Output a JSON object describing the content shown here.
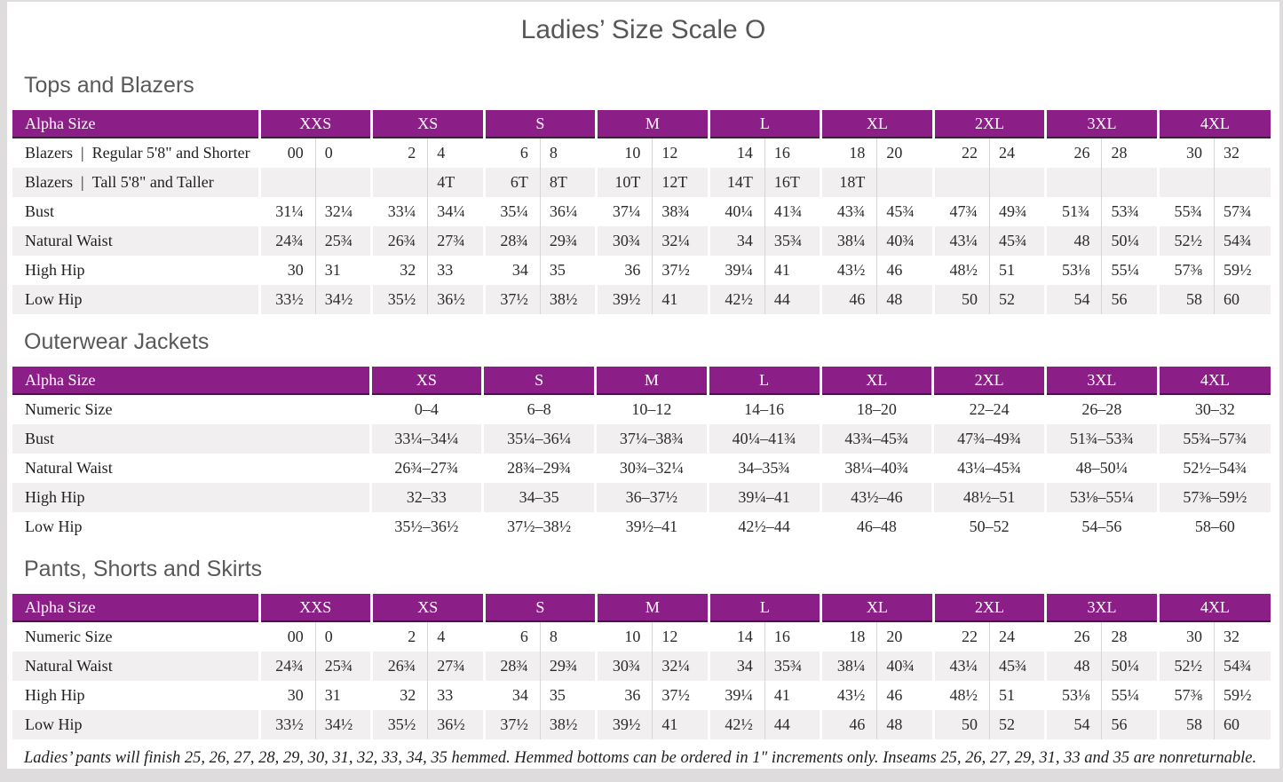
{
  "page_title": "Ladies’ Size Scale O",
  "colors": {
    "accent_purple": "#8b1e87",
    "header_underline": "#401b40",
    "alt_row": "#f1efef",
    "heading_gray": "#595959",
    "surround_gray": "#dedcdc"
  },
  "footnote": "Ladies’ pants will finish 25, 26, 27, 28, 29, 30, 31, 32, 33, 34, 35 hemmed. Hemmed bottoms can be ordered in 1\" increments only. Inseams 25, 26, 27, 29, 31, 33 and 35 are nonreturnable.",
  "sections": [
    {
      "id": "tops-and-blazers",
      "heading": "Tops and Blazers",
      "header_label": "Alpha Size",
      "label_col_width": 278,
      "split": true,
      "sizes": [
        "XXS",
        "XS",
        "S",
        "M",
        "L",
        "XL",
        "2XL",
        "3XL",
        "4XL"
      ],
      "rows": [
        {
          "label": "Blazers | Regular 5'8\" and Shorter",
          "values": [
            [
              "00",
              "0"
            ],
            [
              "2",
              "4"
            ],
            [
              "6",
              "8"
            ],
            [
              "10",
              "12"
            ],
            [
              "14",
              "16"
            ],
            [
              "18",
              "20"
            ],
            [
              "22",
              "24"
            ],
            [
              "26",
              "28"
            ],
            [
              "30",
              "32"
            ]
          ]
        },
        {
          "label": "Blazers | Tall 5'8\" and Taller",
          "values": [
            [
              "",
              ""
            ],
            [
              "",
              "4T"
            ],
            [
              "6T",
              "8T"
            ],
            [
              "10T",
              "12T"
            ],
            [
              "14T",
              "16T"
            ],
            [
              "18T",
              ""
            ],
            [
              "",
              ""
            ],
            [
              "",
              ""
            ],
            [
              "",
              ""
            ]
          ]
        },
        {
          "label": "Bust",
          "values": [
            [
              "31¼",
              "32¼"
            ],
            [
              "33¼",
              "34¼"
            ],
            [
              "35¼",
              "36¼"
            ],
            [
              "37¼",
              "38¾"
            ],
            [
              "40¼",
              "41¾"
            ],
            [
              "43¾",
              "45¾"
            ],
            [
              "47¾",
              "49¾"
            ],
            [
              "51¾",
              "53¾"
            ],
            [
              "55¾",
              "57¾"
            ]
          ]
        },
        {
          "label": "Natural Waist",
          "values": [
            [
              "24¾",
              "25¾"
            ],
            [
              "26¾",
              "27¾"
            ],
            [
              "28¾",
              "29¾"
            ],
            [
              "30¾",
              "32¼"
            ],
            [
              "34",
              "35¾"
            ],
            [
              "38¼",
              "40¾"
            ],
            [
              "43¼",
              "45¾"
            ],
            [
              "48",
              "50¼"
            ],
            [
              "52½",
              "54¾"
            ]
          ]
        },
        {
          "label": "High Hip",
          "values": [
            [
              "30",
              "31"
            ],
            [
              "32",
              "33"
            ],
            [
              "34",
              "35"
            ],
            [
              "36",
              "37½"
            ],
            [
              "39¼",
              "41"
            ],
            [
              "43½",
              "46"
            ],
            [
              "48½",
              "51"
            ],
            [
              "53⅛",
              "55¼"
            ],
            [
              "57⅜",
              "59½"
            ]
          ]
        },
        {
          "label": "Low Hip",
          "values": [
            [
              "33½",
              "34½"
            ],
            [
              "35½",
              "36½"
            ],
            [
              "37½",
              "38½"
            ],
            [
              "39½",
              "41"
            ],
            [
              "42½",
              "44"
            ],
            [
              "46",
              "48"
            ],
            [
              "50",
              "52"
            ],
            [
              "54",
              "56"
            ],
            [
              "58",
              "60"
            ]
          ]
        }
      ]
    },
    {
      "id": "outerwear-jackets",
      "heading": "Outerwear Jackets",
      "header_label": "Alpha Size",
      "label_col_width": 403,
      "split": false,
      "sizes": [
        "XS",
        "S",
        "M",
        "L",
        "XL",
        "2XL",
        "3XL",
        "4XL"
      ],
      "rows": [
        {
          "label": "Numeric Size",
          "values": [
            "0–4",
            "6–8",
            "10–12",
            "14–16",
            "18–20",
            "22–24",
            "26–28",
            "30–32"
          ]
        },
        {
          "label": "Bust",
          "values": [
            "33¼–34¼",
            "35¼–36¼",
            "37¼–38¾",
            "40¼–41¾",
            "43¾–45¾",
            "47¾–49¾",
            "51¾–53¾",
            "55¾–57¾"
          ]
        },
        {
          "label": "Natural Waist",
          "values": [
            "26¾–27¾",
            "28¾–29¾",
            "30¾–32¼",
            "34–35¾",
            "38¼–40¾",
            "43¼–45¾",
            "48–50¼",
            "52½–54¾"
          ]
        },
        {
          "label": "High Hip",
          "values": [
            "32–33",
            "34–35",
            "36–37½",
            "39¼–41",
            "43½–46",
            "48½–51",
            "53⅛–55¼",
            "57⅜–59½"
          ]
        },
        {
          "label": "Low Hip",
          "values": [
            "35½–36½",
            "37½–38½",
            "39½–41",
            "42½–44",
            "46–48",
            "50–52",
            "54–56",
            "58–60"
          ]
        }
      ]
    },
    {
      "id": "pants-shorts-and-skirts",
      "heading": "Pants, Shorts and Skirts",
      "header_label": "Alpha Size",
      "label_col_width": 278,
      "split": true,
      "sizes": [
        "XXS",
        "XS",
        "S",
        "M",
        "L",
        "XL",
        "2XL",
        "3XL",
        "4XL"
      ],
      "rows": [
        {
          "label": "Numeric Size",
          "values": [
            [
              "00",
              "0"
            ],
            [
              "2",
              "4"
            ],
            [
              "6",
              "8"
            ],
            [
              "10",
              "12"
            ],
            [
              "14",
              "16"
            ],
            [
              "18",
              "20"
            ],
            [
              "22",
              "24"
            ],
            [
              "26",
              "28"
            ],
            [
              "30",
              "32"
            ]
          ]
        },
        {
          "label": "Natural Waist",
          "values": [
            [
              "24¾",
              "25¾"
            ],
            [
              "26¾",
              "27¾"
            ],
            [
              "28¾",
              "29¾"
            ],
            [
              "30¾",
              "32¼"
            ],
            [
              "34",
              "35¾"
            ],
            [
              "38¼",
              "40¾"
            ],
            [
              "43¼",
              "45¾"
            ],
            [
              "48",
              "50¼"
            ],
            [
              "52½",
              "54¾"
            ]
          ]
        },
        {
          "label": "High Hip",
          "values": [
            [
              "30",
              "31"
            ],
            [
              "32",
              "33"
            ],
            [
              "34",
              "35"
            ],
            [
              "36",
              "37½"
            ],
            [
              "39¼",
              "41"
            ],
            [
              "43½",
              "46"
            ],
            [
              "48½",
              "51"
            ],
            [
              "53⅛",
              "55¼"
            ],
            [
              "57⅜",
              "59½"
            ]
          ]
        },
        {
          "label": "Low Hip",
          "values": [
            [
              "33½",
              "34½"
            ],
            [
              "35½",
              "36½"
            ],
            [
              "37½",
              "38½"
            ],
            [
              "39½",
              "41"
            ],
            [
              "42½",
              "44"
            ],
            [
              "46",
              "48"
            ],
            [
              "50",
              "52"
            ],
            [
              "54",
              "56"
            ],
            [
              "58",
              "60"
            ]
          ]
        }
      ]
    }
  ]
}
